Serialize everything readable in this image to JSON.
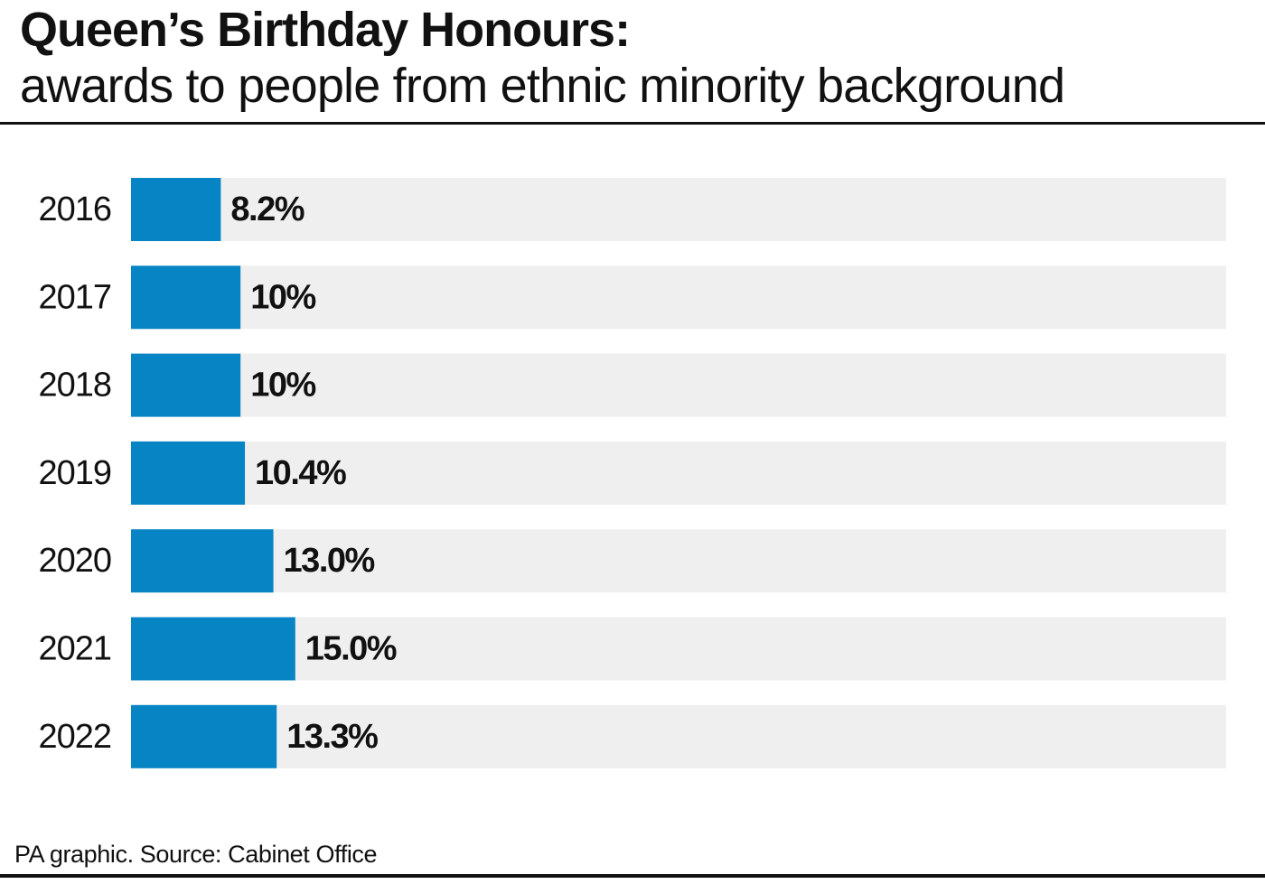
{
  "header": {
    "title": "Queen’s Birthday Honours:",
    "subtitle": "awards to people from ethnic minority background"
  },
  "footer": {
    "source": "PA graphic. Source: Cabinet Office"
  },
  "colors": {
    "bar": "#0784C3",
    "track": "#EFEFEF",
    "text": "#111111"
  },
  "chart_data": {
    "type": "bar",
    "orientation": "horizontal",
    "categories": [
      "2016",
      "2017",
      "2018",
      "2019",
      "2020",
      "2021",
      "2022"
    ],
    "values": [
      8.2,
      10,
      10,
      10.4,
      13.0,
      15.0,
      13.3
    ],
    "value_labels": [
      "8.2%",
      "10%",
      "10%",
      "10.4%",
      "13.0%",
      "15.0%",
      "13.3%"
    ],
    "unit": "%",
    "xlim": [
      0,
      100
    ],
    "grid": false,
    "legend": "none"
  }
}
